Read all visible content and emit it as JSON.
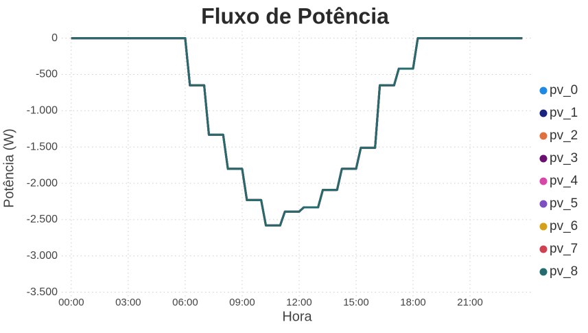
{
  "chart_data": {
    "type": "line",
    "title": "Fluxo de Potência",
    "x_label": "Hora",
    "y_label": "Potência (W)",
    "x": [
      0,
      6,
      6.25,
      7,
      7.25,
      8,
      8.25,
      9,
      9.25,
      10,
      10.25,
      11,
      11.25,
      12,
      12.25,
      13,
      13.25,
      14,
      14.25,
      15,
      15.25,
      16,
      16.25,
      17,
      17.25,
      18,
      18.25,
      23.75
    ],
    "series": [
      {
        "name": "pv_0",
        "color": "#1e88e5",
        "values": [
          0,
          0,
          -650,
          -650,
          -1330,
          -1330,
          -1800,
          -1800,
          -2230,
          -2230,
          -2580,
          -2580,
          -2390,
          -2390,
          -2330,
          -2330,
          -2090,
          -2090,
          -1800,
          -1800,
          -1510,
          -1510,
          -650,
          -650,
          -420,
          -420,
          0,
          0
        ]
      },
      {
        "name": "pv_1",
        "color": "#1a237e",
        "values": [
          0,
          0,
          -650,
          -650,
          -1330,
          -1330,
          -1800,
          -1800,
          -2230,
          -2230,
          -2580,
          -2580,
          -2390,
          -2390,
          -2330,
          -2330,
          -2090,
          -2090,
          -1800,
          -1800,
          -1510,
          -1510,
          -650,
          -650,
          -420,
          -420,
          0,
          0
        ]
      },
      {
        "name": "pv_2",
        "color": "#e07040",
        "values": [
          0,
          0,
          -650,
          -650,
          -1330,
          -1330,
          -1800,
          -1800,
          -2230,
          -2230,
          -2580,
          -2580,
          -2390,
          -2390,
          -2330,
          -2330,
          -2090,
          -2090,
          -1800,
          -1800,
          -1510,
          -1510,
          -650,
          -650,
          -420,
          -420,
          0,
          0
        ]
      },
      {
        "name": "pv_3",
        "color": "#6a1070",
        "values": [
          0,
          0,
          -650,
          -650,
          -1330,
          -1330,
          -1800,
          -1800,
          -2230,
          -2230,
          -2580,
          -2580,
          -2390,
          -2390,
          -2330,
          -2330,
          -2090,
          -2090,
          -1800,
          -1800,
          -1510,
          -1510,
          -650,
          -650,
          -420,
          -420,
          0,
          0
        ]
      },
      {
        "name": "pv_4",
        "color": "#d946a8",
        "values": [
          0,
          0,
          -650,
          -650,
          -1330,
          -1330,
          -1800,
          -1800,
          -2230,
          -2230,
          -2580,
          -2580,
          -2390,
          -2390,
          -2330,
          -2330,
          -2090,
          -2090,
          -1800,
          -1800,
          -1510,
          -1510,
          -650,
          -650,
          -420,
          -420,
          0,
          0
        ]
      },
      {
        "name": "pv_5",
        "color": "#7e4fc0",
        "values": [
          0,
          0,
          -650,
          -650,
          -1330,
          -1330,
          -1800,
          -1800,
          -2230,
          -2230,
          -2580,
          -2580,
          -2390,
          -2390,
          -2330,
          -2330,
          -2090,
          -2090,
          -1800,
          -1800,
          -1510,
          -1510,
          -650,
          -650,
          -420,
          -420,
          0,
          0
        ]
      },
      {
        "name": "pv_6",
        "color": "#d4a017",
        "values": [
          0,
          0,
          -650,
          -650,
          -1330,
          -1330,
          -1800,
          -1800,
          -2230,
          -2230,
          -2580,
          -2580,
          -2390,
          -2390,
          -2330,
          -2330,
          -2090,
          -2090,
          -1800,
          -1800,
          -1510,
          -1510,
          -650,
          -650,
          -420,
          -420,
          0,
          0
        ]
      },
      {
        "name": "pv_7",
        "color": "#d04050",
        "values": [
          0,
          0,
          -650,
          -650,
          -1330,
          -1330,
          -1800,
          -1800,
          -2230,
          -2230,
          -2580,
          -2580,
          -2390,
          -2390,
          -2330,
          -2330,
          -2090,
          -2090,
          -1800,
          -1800,
          -1510,
          -1510,
          -650,
          -650,
          -420,
          -420,
          0,
          0
        ]
      },
      {
        "name": "pv_8",
        "color": "#246b70",
        "values": [
          0,
          0,
          -650,
          -650,
          -1330,
          -1330,
          -1800,
          -1800,
          -2230,
          -2230,
          -2580,
          -2580,
          -2390,
          -2390,
          -2330,
          -2330,
          -2090,
          -2090,
          -1800,
          -1800,
          -1510,
          -1510,
          -650,
          -650,
          -420,
          -420,
          0,
          0
        ]
      }
    ],
    "xlim": [
      -0.5,
      24.25
    ],
    "xticks": [
      {
        "value": 0,
        "label": "00:00"
      },
      {
        "value": 3,
        "label": "03:00"
      },
      {
        "value": 6,
        "label": "06:00"
      },
      {
        "value": 9,
        "label": "09:00"
      },
      {
        "value": 12,
        "label": "12:00"
      },
      {
        "value": 15,
        "label": "15:00"
      },
      {
        "value": 18,
        "label": "18:00"
      },
      {
        "value": 21,
        "label": "21:00"
      }
    ],
    "ylim": [
      -3560,
      100
    ],
    "yticks": [
      0,
      -500,
      {
        "value": -1000,
        "label": "-1.000"
      },
      {
        "value": -1500,
        "label": "-1.500"
      },
      {
        "value": -2000,
        "label": "-2.000"
      },
      {
        "value": -2500,
        "label": "-2.500"
      },
      {
        "value": -3000,
        "label": "-3.000"
      },
      {
        "value": -3500,
        "label": "-3.500"
      }
    ],
    "grid": true,
    "legend": "right"
  }
}
